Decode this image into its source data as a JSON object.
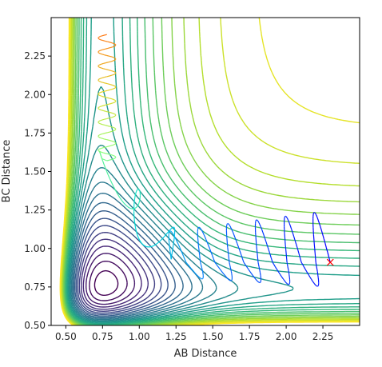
{
  "chart_data": {
    "type": "contour",
    "title": "",
    "xlabel": "AB Distance",
    "ylabel": "BC Distance",
    "xlim": [
      0.4,
      2.5
    ],
    "ylim": [
      0.5,
      2.5
    ],
    "xticks": [
      "0.50",
      "0.75",
      "1.00",
      "1.25",
      "1.50",
      "1.75",
      "2.00",
      "2.25"
    ],
    "yticks": [
      "0.50",
      "0.75",
      "1.00",
      "1.25",
      "1.50",
      "1.75",
      "2.00",
      "2.25"
    ],
    "colormap": "viridis",
    "trajectory_color_start": "#0000ff",
    "trajectory_color_end": "#ff7f0e",
    "start_marker": {
      "x": 2.3,
      "y": 0.91,
      "symbol": "x",
      "color": "#ff0000"
    },
    "grid": false,
    "legend": "none"
  }
}
